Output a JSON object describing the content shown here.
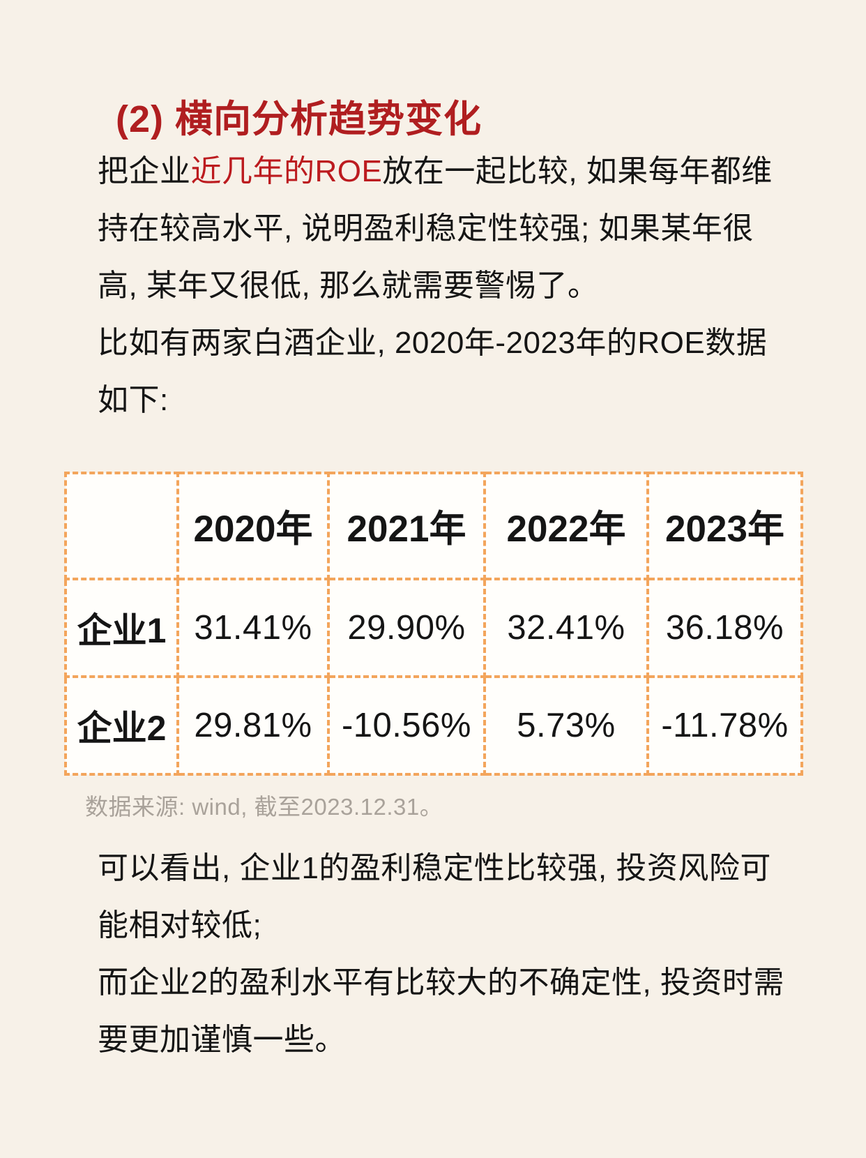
{
  "colors": {
    "page_bg": "#f7f1e8",
    "cell_bg": "#fffefb",
    "heading_red": "#b01e20",
    "accent_red": "#bc1b1f",
    "table_border": "#f3a55c",
    "text_color": "#151515",
    "muted_gray": "#a9a29a"
  },
  "heading": "(2) 横向分析趋势变化",
  "intro": {
    "p1_pre": "把企业",
    "p1_red": "近几年的ROE",
    "p1_post": "放在一起比较, 如果每年都维持在较高水平, 说明盈利稳定性较强; 如果某年很高, 某年又很低, 那么就需要警惕了。",
    "p2": "比如有两家白酒企业, 2020年-2023年的ROE数据如下:"
  },
  "table": {
    "header": [
      "",
      "2020年",
      "2021年",
      "2022年",
      "2023年"
    ],
    "rows": [
      {
        "label": "企业1",
        "values": [
          "31.41%",
          "29.90%",
          "32.41%",
          "36.18%"
        ]
      },
      {
        "label": "企业2",
        "values": [
          "29.81%",
          "-10.56%",
          "5.73%",
          "-11.78%"
        ]
      }
    ]
  },
  "source_note": "数据来源: wind, 截至2023.12.31。",
  "conclusion": {
    "p1": "可以看出, 企业1的盈利稳定性比较强, 投资风险可能相对较低;",
    "p2": "而企业2的盈利水平有比较大的不确定性, 投资时需要更加谨慎一些。"
  }
}
